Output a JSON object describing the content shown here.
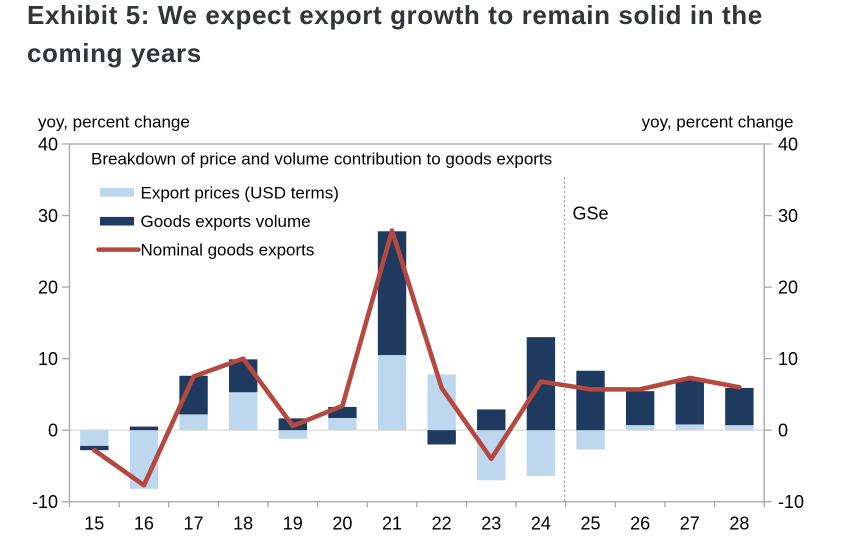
{
  "header": {
    "title": "Exhibit 5: We expect export growth to remain solid in the coming years",
    "title_lines": [
      "Exhibit 5: We expect export growth to remain solid in the",
      "coming years"
    ]
  },
  "chart_data": {
    "type": "bar",
    "subtype": "stacked bars with overlaid line",
    "title": "Breakdown of price and volume contribution to goods exports",
    "left_axis_title": "yoy, percent change",
    "right_axis_title": "yoy, percent change",
    "categories": [
      "15",
      "16",
      "17",
      "18",
      "19",
      "20",
      "21",
      "22",
      "23",
      "24",
      "25",
      "26",
      "27",
      "28"
    ],
    "series": [
      {
        "name": "Export prices (USD terms)",
        "type": "bar",
        "color": "#BDD7EE",
        "values": [
          -2.2,
          -8.2,
          2.2,
          5.3,
          -1.2,
          1.7,
          10.5,
          7.8,
          -7.0,
          -6.4,
          -2.7,
          0.7,
          0.8,
          0.7
        ]
      },
      {
        "name": "Goods exports volume",
        "type": "bar",
        "color": "#1E3A5E",
        "values": [
          -0.6,
          0.5,
          5.4,
          4.6,
          1.65,
          1.55,
          17.3,
          -2.0,
          2.9,
          13.0,
          8.3,
          4.75,
          6.2,
          5.2
        ]
      },
      {
        "name": "Nominal goods exports",
        "type": "line",
        "color": "#B5483F",
        "values": [
          -2.8,
          -7.7,
          7.5,
          10.0,
          0.6,
          3.4,
          27.9,
          5.9,
          -4.0,
          6.8,
          5.7,
          5.7,
          7.3,
          6.0
        ]
      }
    ],
    "ylim": [
      -10,
      40
    ],
    "yticks": [
      40,
      30,
      20,
      10,
      0,
      -10
    ],
    "grid": "horizontal zero line only",
    "legend_position": "inside top-left",
    "annotation": "GSe",
    "annotation_note": "dashed vertical divider between 24 and 25 marks start of forecasts",
    "colors": {
      "axis": "#A6A6A6",
      "zero_gridline": "#D9D9D9",
      "dashed_divider": "#ABABAB",
      "export_prices": "#BDD7EE",
      "goods_exports_volume": "#1E3A5E",
      "nominal_goods_exports": "#B5483F",
      "title_text": "#33353c",
      "axis_text": "#000000"
    }
  }
}
